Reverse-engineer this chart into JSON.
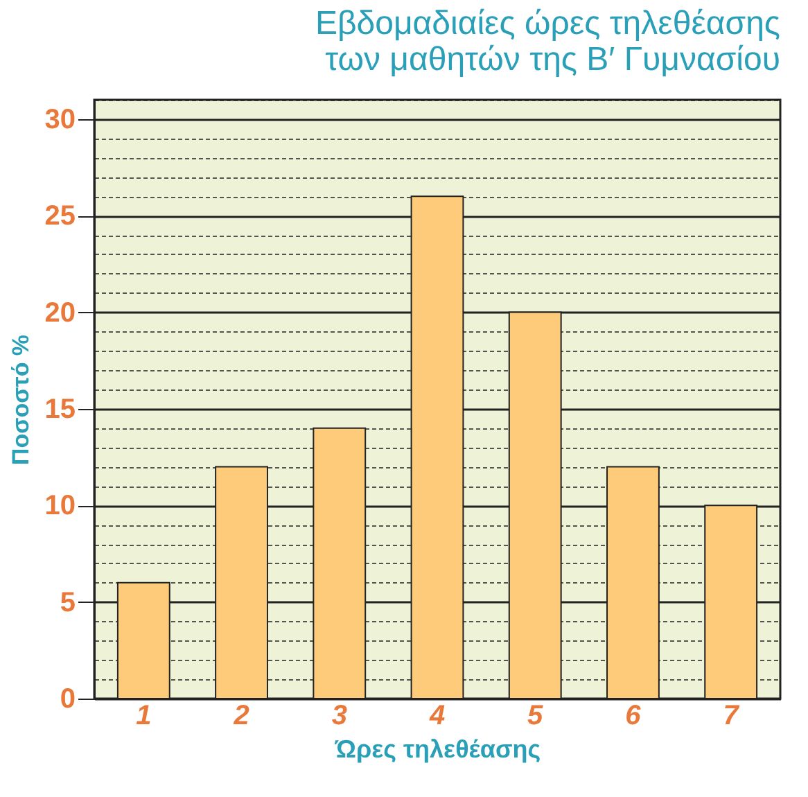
{
  "chart_data": {
    "type": "bar",
    "title": "Εβδομαδιαίες ώρες τηλεθέασης\nτων μαθητών της Β′ Γυμνασίου",
    "xlabel": "Ώρες τηλεθέασης",
    "ylabel": "Ποσοστό %",
    "categories": [
      "1",
      "2",
      "3",
      "4",
      "5",
      "6",
      "7"
    ],
    "values": [
      6,
      12,
      14,
      26,
      20,
      12,
      10
    ],
    "color": "#fdcb7a",
    "ylim": [
      0,
      31
    ],
    "yticks": [
      0,
      {
        "value": 1,
        "label": null
      },
      {
        "value": 2,
        "label": null
      },
      {
        "value": 3,
        "label": null
      },
      {
        "value": 4,
        "label": null
      },
      5,
      {
        "value": 6,
        "label": null
      },
      {
        "value": 7,
        "label": null
      },
      {
        "value": 8,
        "label": null
      },
      {
        "value": 9,
        "label": null
      },
      10,
      {
        "value": 11,
        "label": null
      },
      {
        "value": 12,
        "label": null
      },
      {
        "value": 13,
        "label": null
      },
      {
        "value": 14,
        "label": null
      },
      15,
      {
        "value": 16,
        "label": null
      },
      {
        "value": 17,
        "label": null
      },
      {
        "value": 18,
        "label": null
      },
      {
        "value": 19,
        "label": null
      },
      20,
      {
        "value": 21,
        "label": null
      },
      {
        "value": 22,
        "label": null
      },
      {
        "value": 23,
        "label": null
      },
      {
        "value": 24,
        "label": null
      },
      25,
      {
        "value": 26,
        "label": null
      },
      {
        "value": 27,
        "label": null
      },
      {
        "value": 28,
        "label": null
      },
      {
        "value": 29,
        "label": null
      },
      30,
      {
        "value": 31,
        "label": null
      }
    ],
    "grid": true
  }
}
